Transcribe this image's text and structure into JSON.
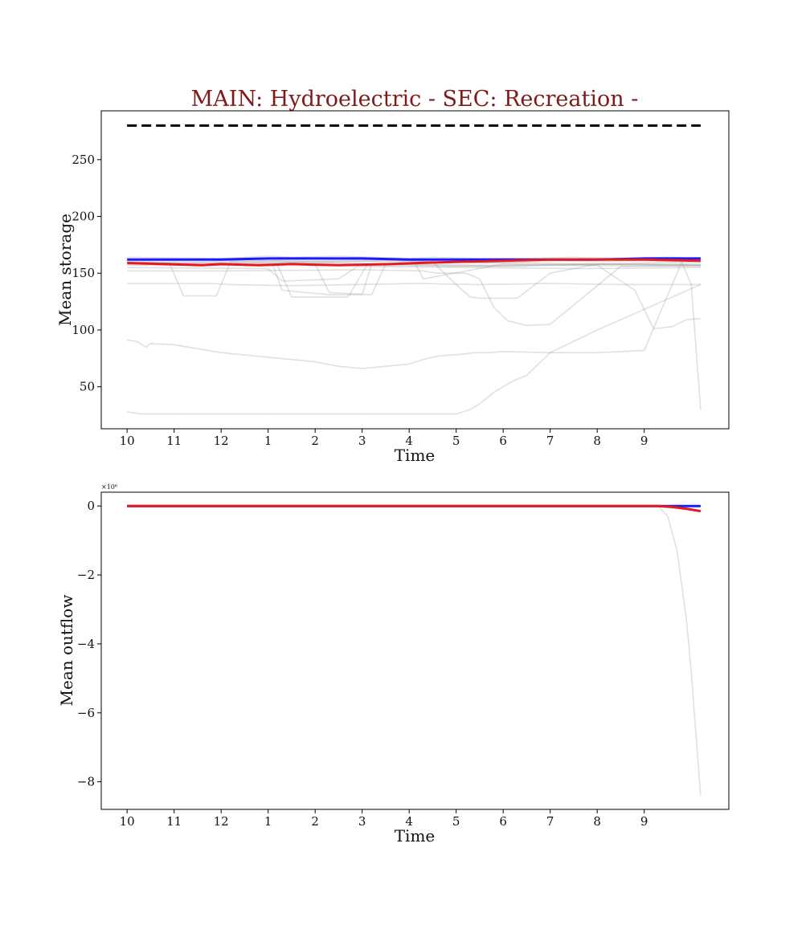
{
  "colors": {
    "title": "#7f1a1a",
    "ensemble": "#999999",
    "mean_line": "#e41a1c",
    "median_line": "#1a1aff",
    "dashed_line": "#000000",
    "axes": "#000000"
  },
  "chart_data": [
    {
      "type": "line",
      "title": "MAIN: Hydroelectric - SEC: Recreation -",
      "xlabel": "Time",
      "ylabel": "Mean storage",
      "xlim": [
        -0.55,
        12.8
      ],
      "ylim": [
        13,
        293
      ],
      "x_tick_values": [
        0,
        1,
        2,
        3,
        4,
        5,
        6,
        7,
        8,
        9,
        10,
        11
      ],
      "x_tick_labels": [
        "10",
        "11",
        "12",
        "1",
        "2",
        "3",
        "4",
        "5",
        "6",
        "7",
        "8",
        "9"
      ],
      "y_tick_values": [
        50,
        100,
        150,
        200,
        250
      ],
      "y_tick_labels": [
        "50",
        "100",
        "150",
        "200",
        "250"
      ],
      "grid": false,
      "series": [
        {
          "role": "reference-dashed",
          "x": [
            0,
            12.2
          ],
          "y": [
            280,
            280
          ]
        },
        {
          "role": "blue-line",
          "x": [
            0,
            1,
            2,
            3,
            4,
            5,
            6,
            7,
            8,
            9,
            10,
            11,
            12.2
          ],
          "y": [
            162,
            162,
            162,
            163,
            163,
            163,
            162,
            162,
            162,
            162,
            162,
            163,
            163
          ]
        },
        {
          "role": "red-line",
          "x": [
            0,
            0.8,
            1.6,
            2,
            2.8,
            3.5,
            4.5,
            5.6,
            6.2,
            7,
            8,
            9,
            10,
            11,
            12.2
          ],
          "y": [
            159,
            158,
            157,
            158,
            157,
            158,
            157,
            158,
            159,
            160,
            161,
            162,
            162,
            162,
            161
          ]
        },
        {
          "role": "ensemble",
          "x": [
            0,
            2,
            3,
            3.5,
            4.5,
            5.2,
            6,
            6.5,
            7.5,
            8.5,
            9.5,
            10.5,
            11.5,
            12.2
          ],
          "y": [
            164,
            163,
            165,
            164,
            165,
            164,
            163,
            164,
            163,
            163,
            164,
            163,
            164,
            163
          ]
        },
        {
          "role": "ensemble",
          "x": [
            0,
            1.5,
            3,
            4,
            5.5,
            6.5,
            8,
            9,
            10,
            11,
            12.2
          ],
          "y": [
            161,
            160,
            161,
            160,
            161,
            160,
            159,
            161,
            160,
            161,
            160
          ]
        },
        {
          "role": "ensemble",
          "x": [
            0,
            0.1,
            1.8,
            2.2,
            3.5,
            4.8,
            6.2,
            7.5,
            9,
            10.5,
            12.2
          ],
          "y": [
            141,
            141,
            141,
            140,
            139,
            140,
            141,
            140,
            141,
            140,
            140
          ]
        },
        {
          "role": "ensemble",
          "x": [
            0,
            0.9,
            1.2,
            1.9,
            2.2,
            4.5,
            5.2,
            6.5,
            8.5,
            10,
            12.2
          ],
          "y": [
            160,
            159,
            130,
            130,
            160,
            159,
            158,
            160,
            159,
            158,
            158
          ]
        },
        {
          "role": "ensemble",
          "x": [
            0,
            3.1,
            3.3,
            4.3,
            5,
            5.2,
            6.5,
            8,
            9.8,
            12.2
          ],
          "y": [
            158,
            157,
            135,
            131,
            131,
            158,
            157,
            156,
            158,
            157
          ]
        },
        {
          "role": "ensemble",
          "x": [
            0,
            3.2,
            3.5,
            4.7,
            5.1,
            7,
            9,
            12.2
          ],
          "y": [
            157,
            157,
            129,
            129,
            157,
            156,
            157,
            156
          ]
        },
        {
          "role": "ensemble",
          "x": [
            0,
            3,
            3.3,
            4.5,
            4.9,
            7.5,
            9.5,
            12.2
          ],
          "y": [
            155,
            154,
            143,
            145,
            156,
            155,
            154,
            155
          ]
        },
        {
          "role": "ensemble",
          "x": [
            0,
            4,
            4.3,
            5.2,
            5.5,
            7.5,
            10,
            12.2
          ],
          "y": [
            159,
            158,
            133,
            131,
            158,
            157,
            158,
            157
          ]
        },
        {
          "role": "ensemble",
          "x": [
            0,
            5,
            6.1,
            6.3,
            8,
            10,
            10.8,
            11.2,
            11.6,
            11.9,
            12.2
          ],
          "y": [
            159,
            160,
            161,
            145,
            158,
            157,
            135,
            101,
            103,
            109,
            110
          ]
        },
        {
          "role": "ensemble",
          "x": [
            0,
            2,
            5,
            6.3,
            6.6,
            7.2,
            7.5,
            7.8,
            8.1,
            8.5,
            9,
            10.5,
            12.2
          ],
          "y": [
            152,
            152,
            153,
            152,
            150,
            150,
            145,
            120,
            108,
            104,
            105,
            156,
            157
          ]
        },
        {
          "role": "ensemble",
          "x": [
            0,
            0.2,
            0.4,
            0.5,
            1,
            2,
            3,
            4,
            4.5,
            5,
            5.5,
            6,
            6.3,
            6.6,
            6.9,
            7.2,
            7.4,
            7.7,
            8,
            9,
            10,
            11,
            11.8,
            12,
            12.2
          ],
          "y": [
            91,
            90,
            85,
            88,
            87,
            80,
            76,
            72,
            68,
            66,
            68,
            70,
            74,
            77,
            78,
            79,
            80,
            80,
            81,
            80,
            80,
            82,
            160,
            140,
            30
          ]
        },
        {
          "role": "ensemble",
          "x": [
            0,
            0.3,
            3,
            6,
            6.5,
            6.8,
            7,
            7.3,
            7.5,
            7.8,
            8.2,
            8.5,
            9,
            10,
            12.2
          ],
          "y": [
            28,
            26,
            26,
            26,
            26,
            26,
            26,
            30,
            35,
            45,
            55,
            60,
            80,
            100,
            140
          ]
        },
        {
          "role": "ensemble",
          "x": [
            0,
            4,
            5.8,
            6.5,
            7,
            7.3,
            7.5,
            8.3,
            9,
            10,
            12.2
          ],
          "y": [
            162,
            161,
            162,
            160,
            140,
            129,
            128,
            128,
            150,
            158,
            160
          ]
        }
      ]
    },
    {
      "type": "line",
      "title": "",
      "xlabel": "Time",
      "ylabel": "Mean outflow",
      "exponent_label": "×10⁶",
      "xlim": [
        -0.55,
        12.8
      ],
      "ylim": [
        -8.8,
        0.4
      ],
      "x_tick_values": [
        0,
        1,
        2,
        3,
        4,
        5,
        6,
        7,
        8,
        9,
        10,
        11
      ],
      "x_tick_labels": [
        "10",
        "11",
        "12",
        "1",
        "2",
        "3",
        "4",
        "5",
        "6",
        "7",
        "8",
        "9"
      ],
      "y_tick_values": [
        0,
        -2,
        -4,
        -6,
        -8
      ],
      "y_tick_labels": [
        "0",
        "−2",
        "−4",
        "−6",
        "−8"
      ],
      "grid": false,
      "series": [
        {
          "role": "ensemble",
          "x": [
            0,
            11.3,
            11.5,
            11.7,
            11.9,
            12.0,
            12.1,
            12.2
          ],
          "y": [
            0,
            0,
            -0.3,
            -1.3,
            -3.3,
            -4.8,
            -6.6,
            -8.4
          ]
        },
        {
          "role": "red-line",
          "x": [
            0,
            11.3,
            11.6,
            11.9,
            12.2
          ],
          "y": [
            0,
            0,
            -0.03,
            -0.08,
            -0.15
          ]
        },
        {
          "role": "blue-line",
          "x": [
            0,
            12.2
          ],
          "y": [
            0,
            0
          ]
        }
      ]
    }
  ]
}
